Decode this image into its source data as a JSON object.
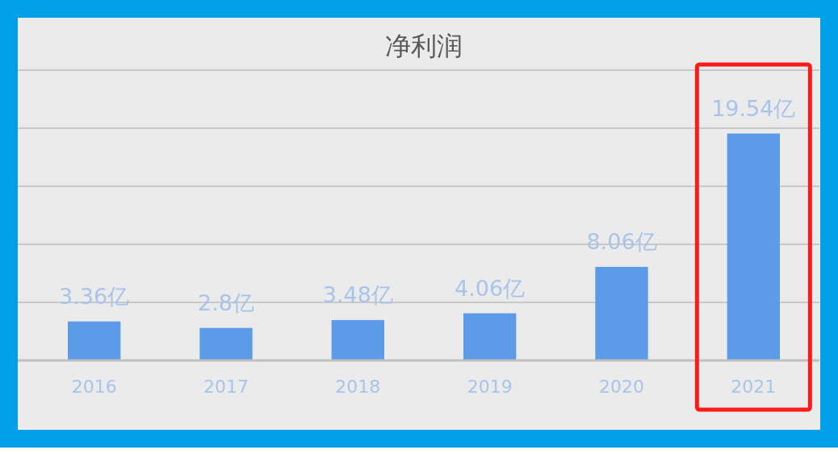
{
  "chart_data": {
    "type": "bar",
    "title": "净利润",
    "categories": [
      "2016",
      "2017",
      "2018",
      "2019",
      "2020",
      "2021"
    ],
    "values": [
      3.36,
      2.8,
      3.48,
      4.06,
      8.06,
      19.54
    ],
    "value_labels": [
      "3.36亿",
      "2.8亿",
      "3.48亿",
      "4.06亿",
      "8.06亿",
      "19.54亿"
    ],
    "color": "#5b9be8",
    "ylim": [
      0,
      25
    ],
    "yticks": [
      {
        "value": 0,
        "label": null
      },
      {
        "value": 5,
        "label": null
      },
      {
        "value": 10,
        "label": null
      },
      {
        "value": 15,
        "label": null
      },
      {
        "value": 20,
        "label": null
      },
      {
        "value": 25,
        "label": null
      }
    ],
    "grid": "y"
  }
}
